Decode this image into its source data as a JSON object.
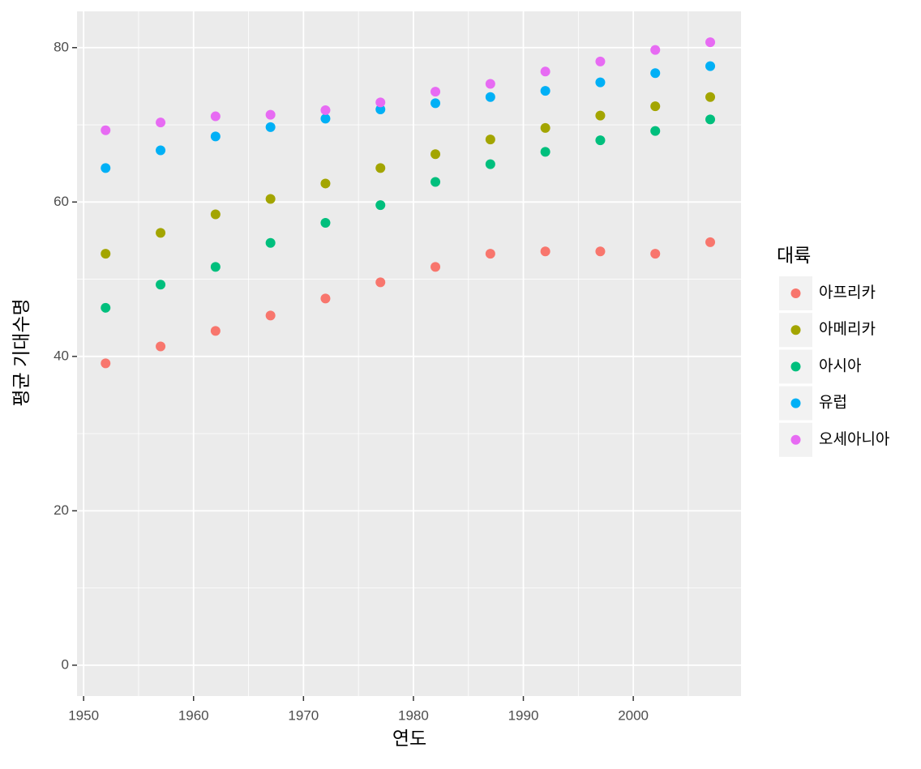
{
  "chart_data": {
    "type": "scatter",
    "x_label": "연도",
    "y_label": "평균 기대수명",
    "legend_title": "대륙",
    "x": [
      1952,
      1957,
      1962,
      1967,
      1972,
      1977,
      1982,
      1987,
      1992,
      1997,
      2002,
      2007
    ],
    "series": [
      {
        "name": "아프리카",
        "color": "#F8766D",
        "values": [
          39.1,
          41.3,
          43.3,
          45.3,
          47.5,
          49.6,
          51.6,
          53.3,
          53.6,
          53.6,
          53.3,
          54.8
        ]
      },
      {
        "name": "아메리카",
        "color": "#A3A500",
        "values": [
          53.3,
          56.0,
          58.4,
          60.4,
          62.4,
          64.4,
          66.2,
          68.1,
          69.6,
          71.2,
          72.4,
          73.6
        ]
      },
      {
        "name": "아시아",
        "color": "#00BF7D",
        "values": [
          46.3,
          49.3,
          51.6,
          54.7,
          57.3,
          59.6,
          62.6,
          64.9,
          66.5,
          68.0,
          69.2,
          70.7
        ]
      },
      {
        "name": "유럽",
        "color": "#00B0F6",
        "values": [
          64.4,
          66.7,
          68.5,
          69.7,
          70.8,
          72.0,
          72.8,
          73.6,
          74.4,
          75.5,
          76.7,
          77.6
        ]
      },
      {
        "name": "오세아니아",
        "color": "#E76BF3",
        "values": [
          69.3,
          70.3,
          71.1,
          71.3,
          71.9,
          72.9,
          74.3,
          75.3,
          76.9,
          78.2,
          79.7,
          80.7
        ]
      }
    ],
    "xlim": [
      1949.4,
      2009.8
    ],
    "ylim": [
      -4,
      84.7
    ],
    "xticks": [
      1950,
      1960,
      1970,
      1980,
      1990,
      2000
    ],
    "yticks": [
      0,
      20,
      40,
      60,
      80
    ],
    "minor_xticks": [
      1955,
      1965,
      1975,
      1985,
      1995,
      2005
    ],
    "minor_yticks": [
      10,
      30,
      50,
      70
    ],
    "grid": true,
    "legend": "right"
  }
}
